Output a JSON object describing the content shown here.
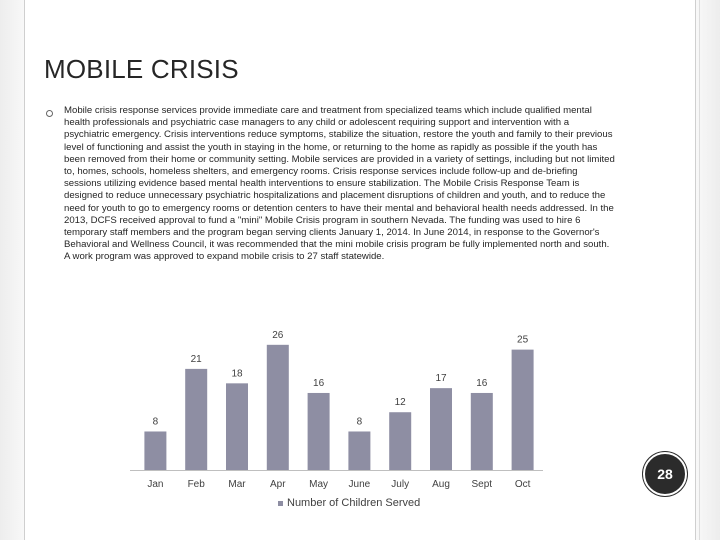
{
  "slide": {
    "title": "MOBILE CRISIS",
    "body": "Mobile crisis response services provide immediate care and treatment from specialized teams which include qualified mental health professionals and psychiatric case managers to any child or adolescent requiring support and intervention with a psychiatric emergency. Crisis interventions reduce symptoms, stabilize the situation, restore the youth and family to their previous level of functioning and assist the youth in staying in the home, or returning to the home as rapidly as possible if the youth has been removed from their home or community setting. Mobile services are provided in a variety of settings, including but not limited to, homes, schools, homeless shelters, and emergency rooms. Crisis response services include follow-up and de-briefing sessions utilizing evidence based mental health interventions to ensure stabilization. The Mobile Crisis Response Team is designed to reduce unnecessary psychiatric hospitalizations and placement disruptions of children and youth, and to reduce the need for youth to go to emergency rooms or detention centers to have their mental and behavioral health needs addressed. In the 2013, DCFS received approval to fund a \"mini\" Mobile Crisis program in southern Nevada. The funding was used to hire 6 temporary staff members and the program began serving clients January 1, 2014. In June 2014, in response to the Governor's Behavioral and Wellness Council, it was recommended that the mini mobile crisis program be fully implemented north and south. A work program was approved to expand mobile crisis to 27 staff statewide.",
    "page_number": "28"
  },
  "chart_data": {
    "type": "bar",
    "categories": [
      "Jan",
      "Feb",
      "Mar",
      "Apr",
      "May",
      "June",
      "July",
      "Aug",
      "Sept",
      "Oct"
    ],
    "series": [
      {
        "name": "Number of Children Served",
        "values": [
          8,
          21,
          18,
          26,
          16,
          8,
          12,
          17,
          16,
          25
        ]
      }
    ],
    "bar_color": "#8e8ea3",
    "title": "",
    "xlabel": "",
    "ylabel": "",
    "ylim": [
      0,
      27
    ],
    "grid": false,
    "legend_position": "bottom"
  }
}
